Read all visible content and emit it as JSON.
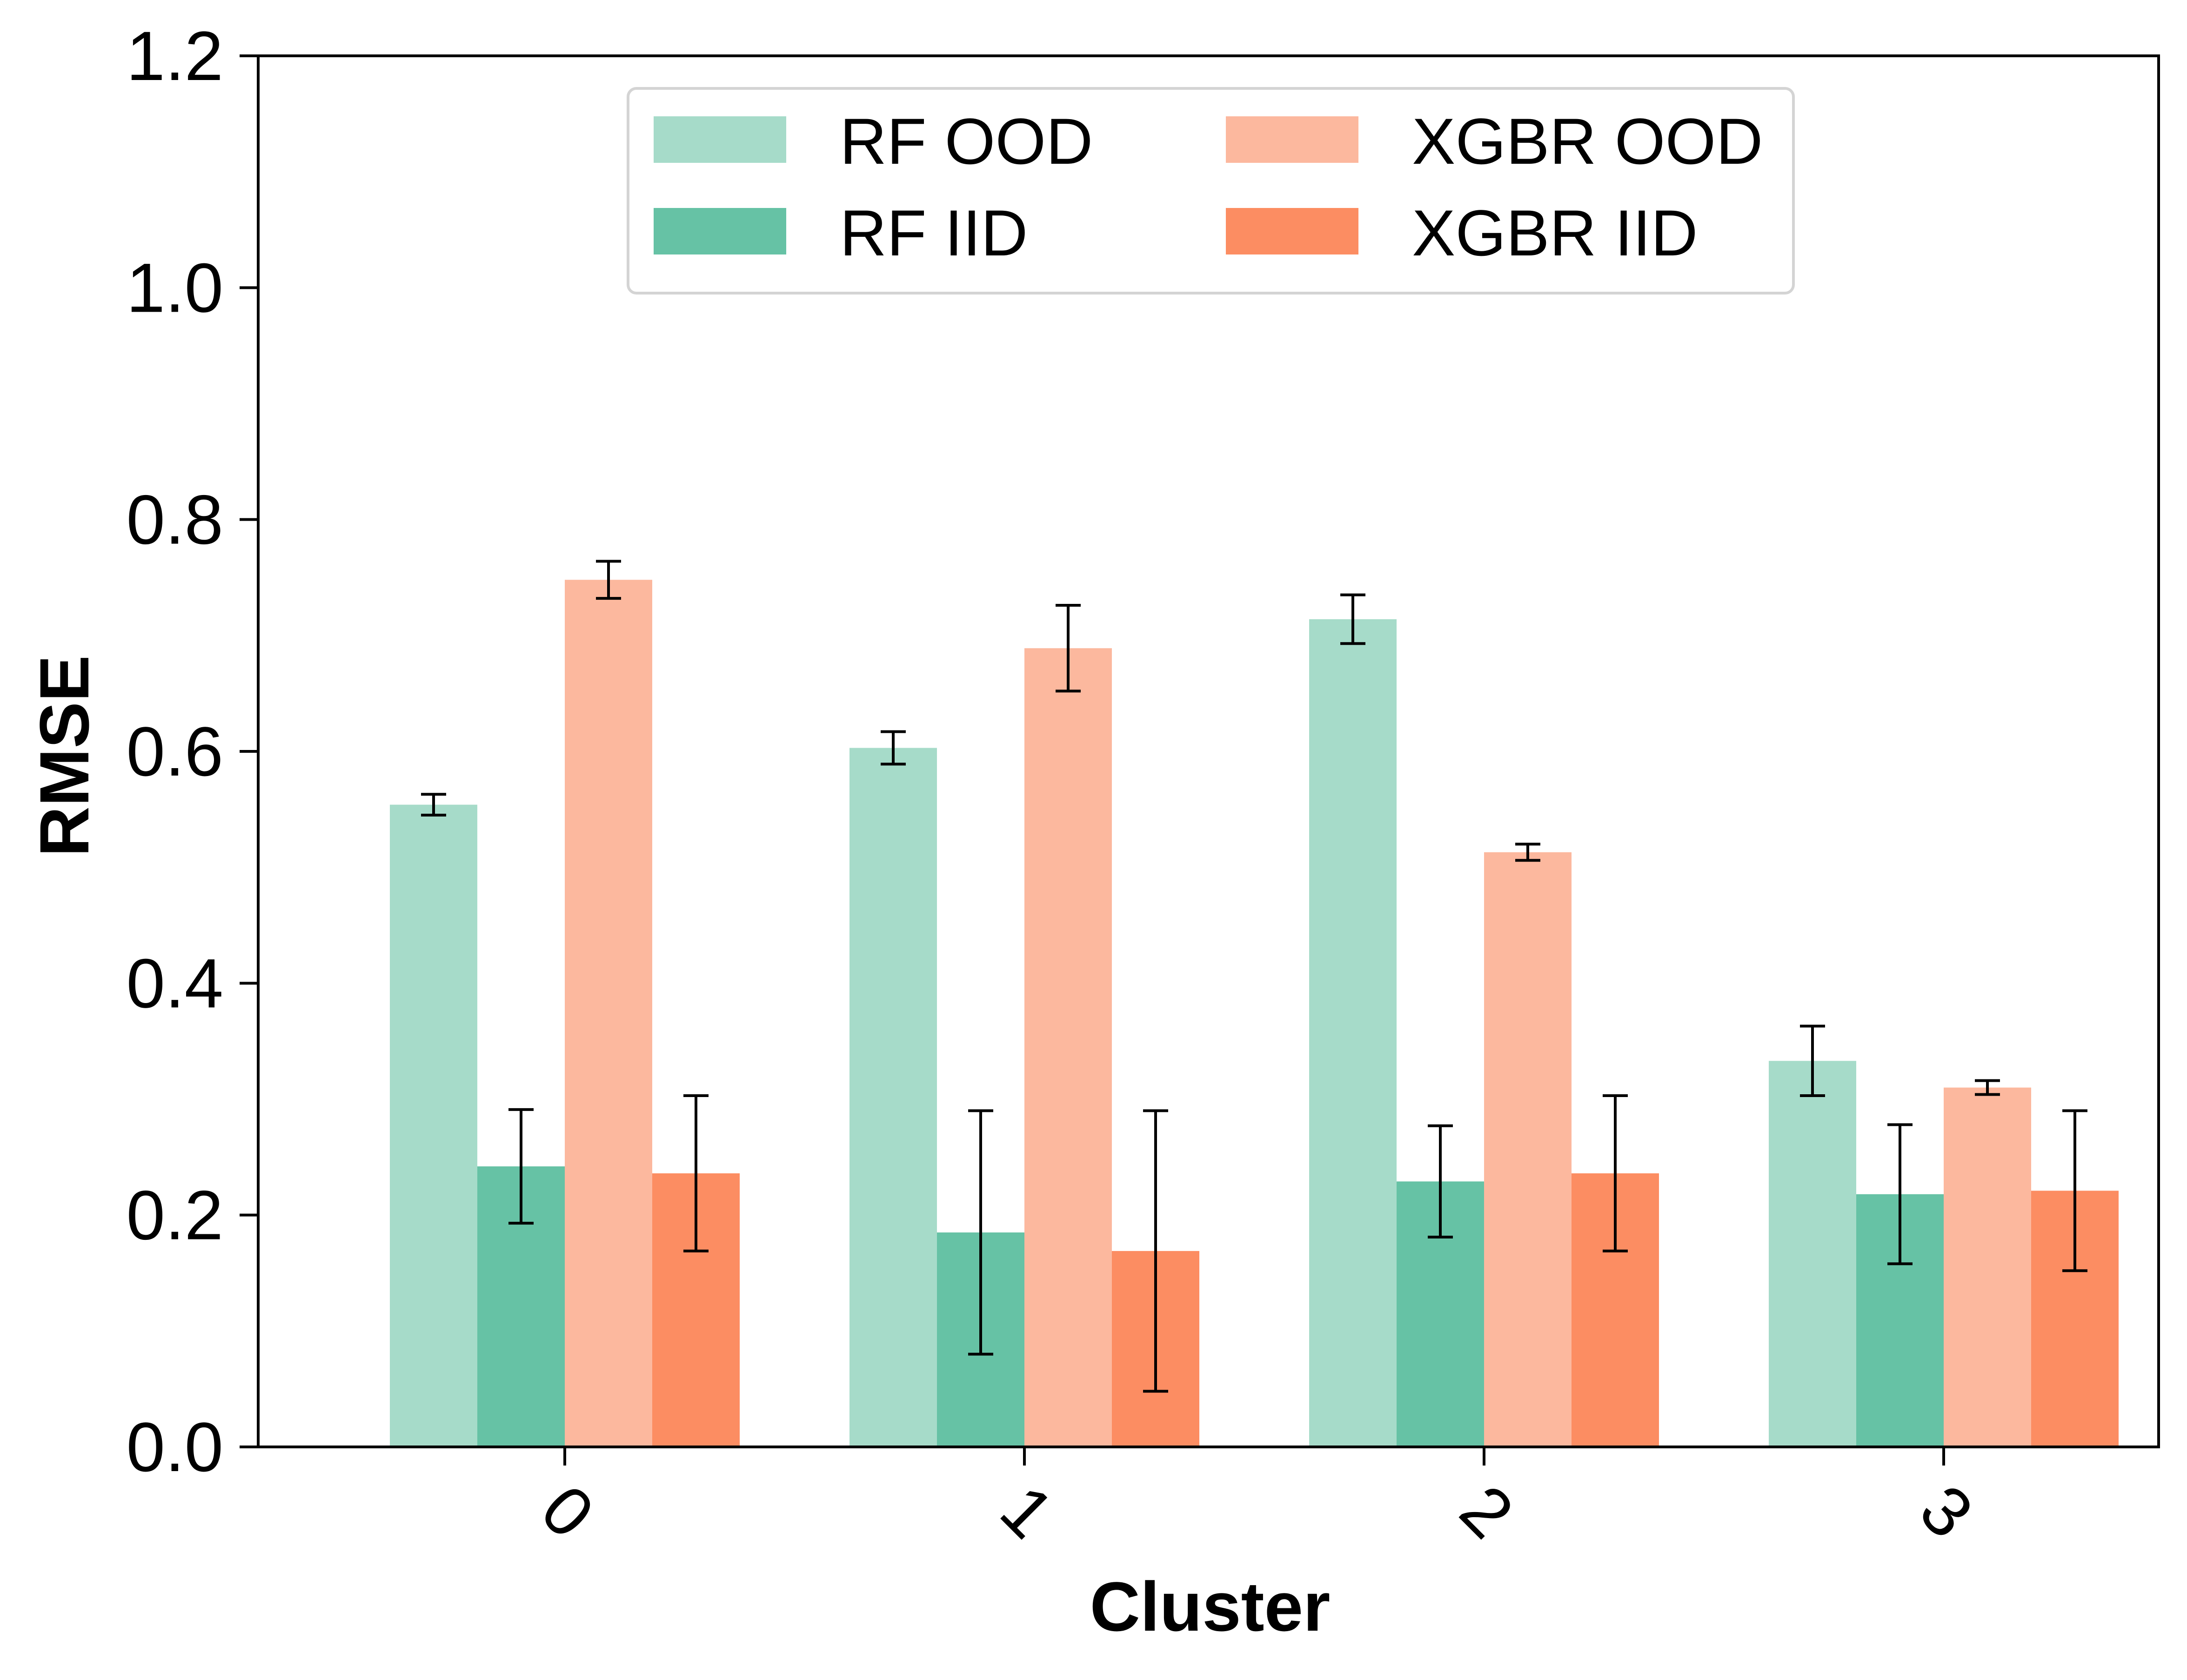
{
  "chart_data": {
    "type": "bar",
    "xlabel": "Cluster",
    "ylabel": "RMSE",
    "categories": [
      "0",
      "1",
      "2",
      "3"
    ],
    "ylim": [
      0.0,
      1.2
    ],
    "yticks": [
      "0.0",
      "0.2",
      "0.4",
      "0.6",
      "0.8",
      "1.0",
      "1.2"
    ],
    "x_tick_rotation_deg": 45,
    "grid": false,
    "legend": {
      "placement": "upper center",
      "columns": 2
    },
    "series": [
      {
        "name": "RF OOD",
        "color": "#a6dbc9",
        "values": [
          0.554,
          0.603,
          0.714,
          0.333
        ],
        "errors": [
          0.009,
          0.014,
          0.021,
          0.03
        ]
      },
      {
        "name": "RF IID",
        "color": "#66c2a5",
        "values": [
          0.242,
          0.185,
          0.229,
          0.218
        ],
        "errors": [
          0.049,
          0.105,
          0.048,
          0.06
        ]
      },
      {
        "name": "XGBR OOD",
        "color": "#fcb89e",
        "values": [
          0.748,
          0.689,
          0.513,
          0.31
        ],
        "errors": [
          0.016,
          0.037,
          0.007,
          0.006
        ]
      },
      {
        "name": "XGBR IID",
        "color": "#fc8d62",
        "values": [
          0.236,
          0.169,
          0.236,
          0.221
        ],
        "errors": [
          0.067,
          0.121,
          0.067,
          0.069
        ]
      }
    ]
  }
}
